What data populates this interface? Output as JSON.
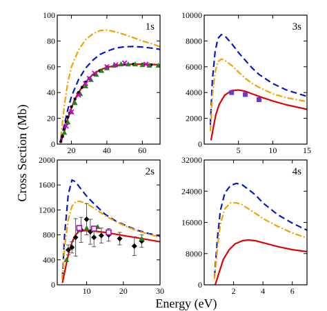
{
  "chart_data": {
    "type": "line",
    "ylabel": "Cross Section (Mb)",
    "xlabel": "Energy (eV)",
    "panels": [
      {
        "label": "1s",
        "xlim": [
          12,
          70
        ],
        "ylim": [
          0,
          100
        ],
        "xticks": [
          20,
          40,
          60
        ],
        "yticks": [
          0,
          20,
          40,
          60,
          80,
          100
        ],
        "series": [
          {
            "style": "orange-dashdot",
            "color": "#f5a000",
            "x": [
              14,
              16,
              18,
              20,
              24,
              28,
              32,
              36,
              40,
              45,
              50,
              55,
              60,
              65,
              70
            ],
            "y": [
              5,
              30,
              48,
              60,
              73,
              81,
              85.5,
              88,
              88.5,
              87,
              85,
              82.5,
              80,
              78,
              75.5
            ]
          },
          {
            "style": "blue-dashed",
            "color": "#0018c8",
            "x": [
              14,
              16,
              18,
              20,
              24,
              28,
              32,
              36,
              40,
              45,
              50,
              55,
              60,
              65,
              70
            ],
            "y": [
              3,
              15,
              27,
              37,
              50,
              59,
              65,
              69.5,
              72,
              74.5,
              75.5,
              75.7,
              75.3,
              74.5,
              73.5
            ]
          },
          {
            "style": "red-solid",
            "color": "#e00000",
            "x": [
              14,
              16,
              18,
              20,
              22,
              24,
              28,
              32,
              36,
              40,
              45,
              50,
              55,
              60,
              65,
              70
            ],
            "y": [
              1,
              10,
              20,
              28,
              35,
              40,
              48,
              54,
              57.5,
              59.5,
              61,
              61.8,
              62,
              62,
              61.8,
              61.5
            ]
          },
          {
            "style": "black-dots",
            "color": "#000000",
            "x": [
              14,
              15,
              16,
              17,
              18,
              19,
              20,
              22,
              24,
              26,
              28,
              30,
              33,
              36,
              40,
              45,
              50,
              55,
              60,
              65
            ],
            "y": [
              2,
              6,
              12,
              17,
              21,
              24,
              29,
              35,
              40,
              44,
              48,
              51,
              54,
              57,
              60,
              61,
              62,
              62,
              62,
              61.5
            ]
          },
          {
            "style": "green-triangles",
            "color": "#1a8a1a",
            "x": [
              16,
              18,
              20,
              22,
              25,
              28,
              31,
              34,
              37,
              40,
              44,
              48,
              52,
              56,
              60,
              64,
              69
            ],
            "y": [
              9,
              17,
              25,
              32,
              39,
              45,
              50,
              54,
              57,
              59,
              61,
              62,
              62,
              62,
              61.5,
              61,
              61
            ]
          },
          {
            "style": "magenta-x",
            "color": "#cc00cc",
            "x": [
              17,
              20,
              24,
              28,
              30,
              33,
              40,
              45,
              50,
              62
            ],
            "y": [
              14,
              25,
              38,
              47,
              51,
              55,
              60,
              61.5,
              63,
              62
            ]
          }
        ]
      },
      {
        "label": "3s",
        "xlim": [
          0,
          15
        ],
        "ylim": [
          0,
          10000
        ],
        "xticks": [
          5,
          10,
          15
        ],
        "yticks": [
          0,
          2000,
          4000,
          6000,
          8000,
          10000
        ],
        "series": [
          {
            "style": "blue-dashed",
            "color": "#0018c8",
            "x": [
              0.9,
              1.2,
              1.6,
              2,
              2.5,
              3,
              4,
              5,
              6,
              7,
              8,
              10,
              12,
              15
            ],
            "y": [
              1500,
              5000,
              7200,
              8200,
              8500,
              8400,
              7800,
              7100,
              6500,
              5900,
              5400,
              4700,
              4200,
              3700
            ]
          },
          {
            "style": "orange-dashdot",
            "color": "#f5a000",
            "x": [
              0.9,
              1.2,
              1.6,
              2,
              2.5,
              3,
              4,
              5,
              6,
              7,
              8,
              10,
              12,
              15
            ],
            "y": [
              1000,
              3800,
              5600,
              6400,
              6600,
              6500,
              6100,
              5600,
              5100,
              4700,
              4400,
              3900,
              3600,
              3300
            ]
          },
          {
            "style": "red-solid",
            "color": "#e00000",
            "x": [
              1,
              1.3,
              1.7,
              2.2,
              3,
              4,
              5,
              6,
              7,
              8,
              10,
              12,
              15
            ],
            "y": [
              300,
              1200,
              2300,
              3100,
              3800,
              4150,
              4200,
              4100,
              3900,
              3700,
              3350,
              3050,
              2700
            ]
          },
          {
            "style": "purple-squares",
            "color": "#6a3acc",
            "x": [
              4,
              6,
              8
            ],
            "y": [
              4000,
              3850,
              3450
            ]
          }
        ]
      },
      {
        "label": "2s",
        "xlim": [
          2,
          30
        ],
        "ylim": [
          0,
          2000
        ],
        "xticks": [
          10,
          20,
          30
        ],
        "yticks": [
          0,
          400,
          800,
          1200,
          1600,
          2000
        ],
        "series": [
          {
            "style": "blue-dashed",
            "color": "#0018c8",
            "x": [
              3.4,
              4,
              5,
              6,
              7,
              8,
              10,
              12,
              15,
              18,
              21,
              24,
              27,
              30
            ],
            "y": [
              100,
              800,
              1450,
              1680,
              1650,
              1570,
              1420,
              1300,
              1130,
              1020,
              940,
              870,
              820,
              780
            ]
          },
          {
            "style": "orange-dashdot",
            "color": "#f5a000",
            "x": [
              3.4,
              4,
              5,
              6,
              7,
              8,
              10,
              12,
              15,
              18,
              21,
              24,
              27,
              30
            ],
            "y": [
              80,
              600,
              1050,
              1260,
              1330,
              1340,
              1300,
              1230,
              1110,
              1010,
              930,
              860,
              810,
              760
            ]
          },
          {
            "style": "red-solid",
            "color": "#e00000",
            "x": [
              3.4,
              4,
              5,
              6,
              7,
              8,
              10,
              12,
              15,
              18,
              21,
              24,
              27,
              30
            ],
            "y": [
              30,
              200,
              480,
              680,
              800,
              860,
              870,
              860,
              840,
              810,
              780,
              750,
              720,
              690
            ]
          },
          {
            "style": "black-diamonds",
            "color": "#000000",
            "x": [
              5,
              6,
              7,
              8.5,
              10,
              11,
              12,
              14,
              16,
              19,
              23,
              25
            ],
            "y": [
              560,
              600,
              760,
              880,
              1050,
              850,
              760,
              790,
              800,
              740,
              620,
              700
            ],
            "err": [
              80,
              90,
              300,
              200,
              250,
              200,
              150,
              120,
              100,
              100,
              150,
              100
            ]
          },
          {
            "style": "green-triangles",
            "color": "#1a8a1a",
            "x": [
              4.5,
              8,
              10,
              13,
              25
            ],
            "y": [
              400,
              880,
              910,
              930,
              740
            ]
          },
          {
            "style": "purple-open-squares",
            "color": "#b000c0",
            "x": [
              8,
              12,
              16
            ],
            "y": [
              910,
              900,
              840
            ]
          }
        ]
      },
      {
        "label": "4s",
        "xlim": [
          0,
          7
        ],
        "ylim": [
          0,
          32000
        ],
        "xticks": [
          2,
          4,
          6
        ],
        "yticks": [
          0,
          8000,
          16000,
          24000,
          32000
        ],
        "series": [
          {
            "style": "blue-dashed",
            "color": "#0018c8",
            "x": [
              0.7,
              0.9,
              1.1,
              1.4,
              1.8,
              2.2,
              2.6,
              3,
              3.5,
              4,
              5,
              6,
              7
            ],
            "y": [
              2000,
              12000,
              19000,
              23500,
              25500,
              26000,
              25600,
              24500,
              23000,
              21000,
              18000,
              15800,
              14000
            ]
          },
          {
            "style": "orange-dashdot",
            "color": "#f5a000",
            "x": [
              0.7,
              0.9,
              1.1,
              1.4,
              1.8,
              2.2,
              2.6,
              3,
              3.5,
              4,
              5,
              6,
              7
            ],
            "y": [
              1500,
              9500,
              15500,
              19500,
              21000,
              21000,
              20500,
              19500,
              18300,
              17000,
              15000,
              13300,
              12000
            ]
          },
          {
            "style": "red-solid",
            "color": "#e00000",
            "x": [
              0.75,
              1,
              1.3,
              1.7,
              2.1,
              2.6,
              3,
              3.5,
              4,
              5,
              6,
              7
            ],
            "y": [
              0,
              3000,
              6500,
              9000,
              10500,
              11300,
              11500,
              11300,
              10800,
              9800,
              9000,
              8500
            ]
          }
        ]
      }
    ]
  }
}
